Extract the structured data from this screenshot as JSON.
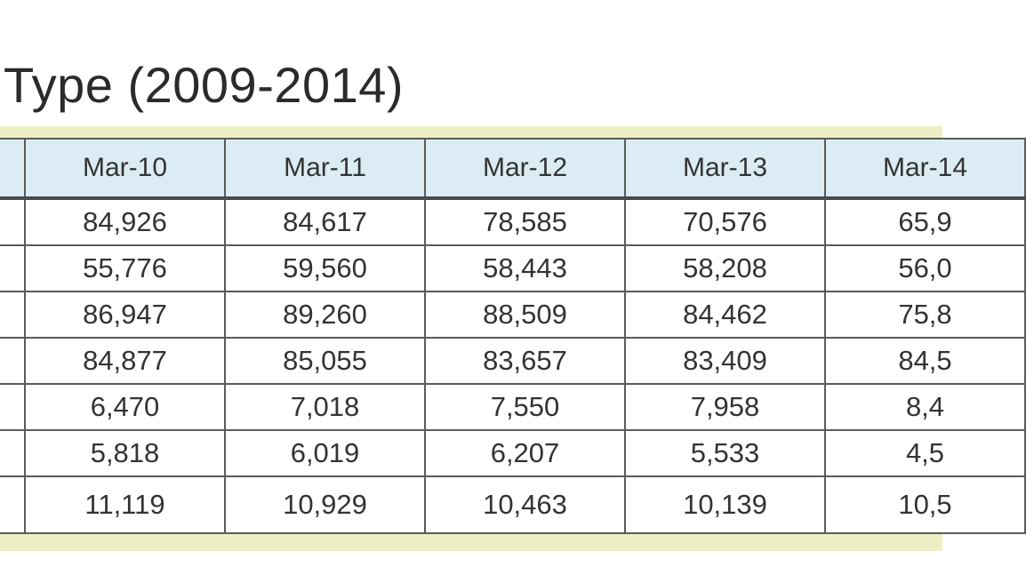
{
  "document": {
    "title": "Type (2009-2014)"
  },
  "table": {
    "columns": [
      "",
      "Mar-10",
      "Mar-11",
      "Mar-12",
      "Mar-13",
      "Mar-14"
    ],
    "rows": [
      [
        "",
        "84,926",
        "84,617",
        "78,585",
        "70,576",
        "65,9"
      ],
      [
        "",
        "55,776",
        "59,560",
        "58,443",
        "58,208",
        "56,0"
      ],
      [
        "",
        "86,947",
        "89,260",
        "88,509",
        "84,462",
        "75,8"
      ],
      [
        "",
        "84,877",
        "85,055",
        "83,657",
        "83,409",
        "84,5"
      ],
      [
        "",
        "6,470",
        "7,018",
        "7,550",
        "7,958",
        "8,4"
      ],
      [
        "",
        "5,818",
        "6,019",
        "6,207",
        "5,533",
        "4,5"
      ],
      [
        "",
        "11,119",
        "10,929",
        "10,463",
        "10,139",
        "10,5"
      ]
    ]
  }
}
